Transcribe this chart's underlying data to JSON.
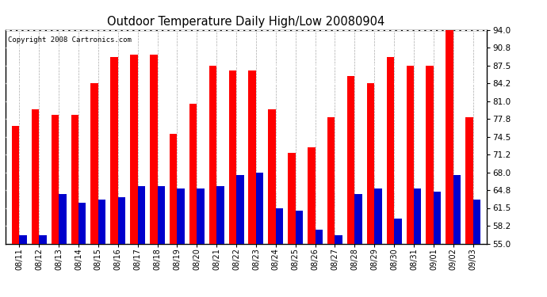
{
  "title": "Outdoor Temperature Daily High/Low 20080904",
  "copyright": "Copyright 2008 Cartronics.com",
  "dates": [
    "08/11",
    "08/12",
    "08/13",
    "08/14",
    "08/15",
    "08/16",
    "08/17",
    "08/18",
    "08/19",
    "08/20",
    "08/21",
    "08/22",
    "08/23",
    "08/24",
    "08/25",
    "08/26",
    "08/27",
    "08/28",
    "08/29",
    "08/30",
    "08/31",
    "09/01",
    "09/02",
    "09/03"
  ],
  "highs": [
    76.5,
    79.5,
    78.5,
    78.5,
    84.2,
    89.0,
    89.5,
    89.5,
    75.0,
    80.5,
    87.5,
    86.5,
    86.5,
    79.5,
    71.5,
    72.5,
    78.0,
    85.5,
    84.2,
    89.0,
    87.5,
    87.5,
    94.0,
    78.0
  ],
  "lows": [
    56.5,
    56.5,
    64.0,
    62.5,
    63.0,
    63.5,
    65.5,
    65.5,
    65.0,
    65.0,
    65.5,
    67.5,
    68.0,
    61.5,
    61.0,
    57.5,
    56.5,
    64.0,
    65.0,
    59.5,
    65.0,
    64.5,
    67.5,
    63.0
  ],
  "high_color": "#ff0000",
  "low_color": "#0000cc",
  "background_color": "#ffffff",
  "plot_bg_color": "#ffffff",
  "grid_color": "#aaaaaa",
  "yticks": [
    55.0,
    58.2,
    61.5,
    64.8,
    68.0,
    71.2,
    74.5,
    77.8,
    81.0,
    84.2,
    87.5,
    90.8,
    94.0
  ],
  "ymin": 55.0,
  "ymax": 94.0,
  "bar_width": 0.38
}
